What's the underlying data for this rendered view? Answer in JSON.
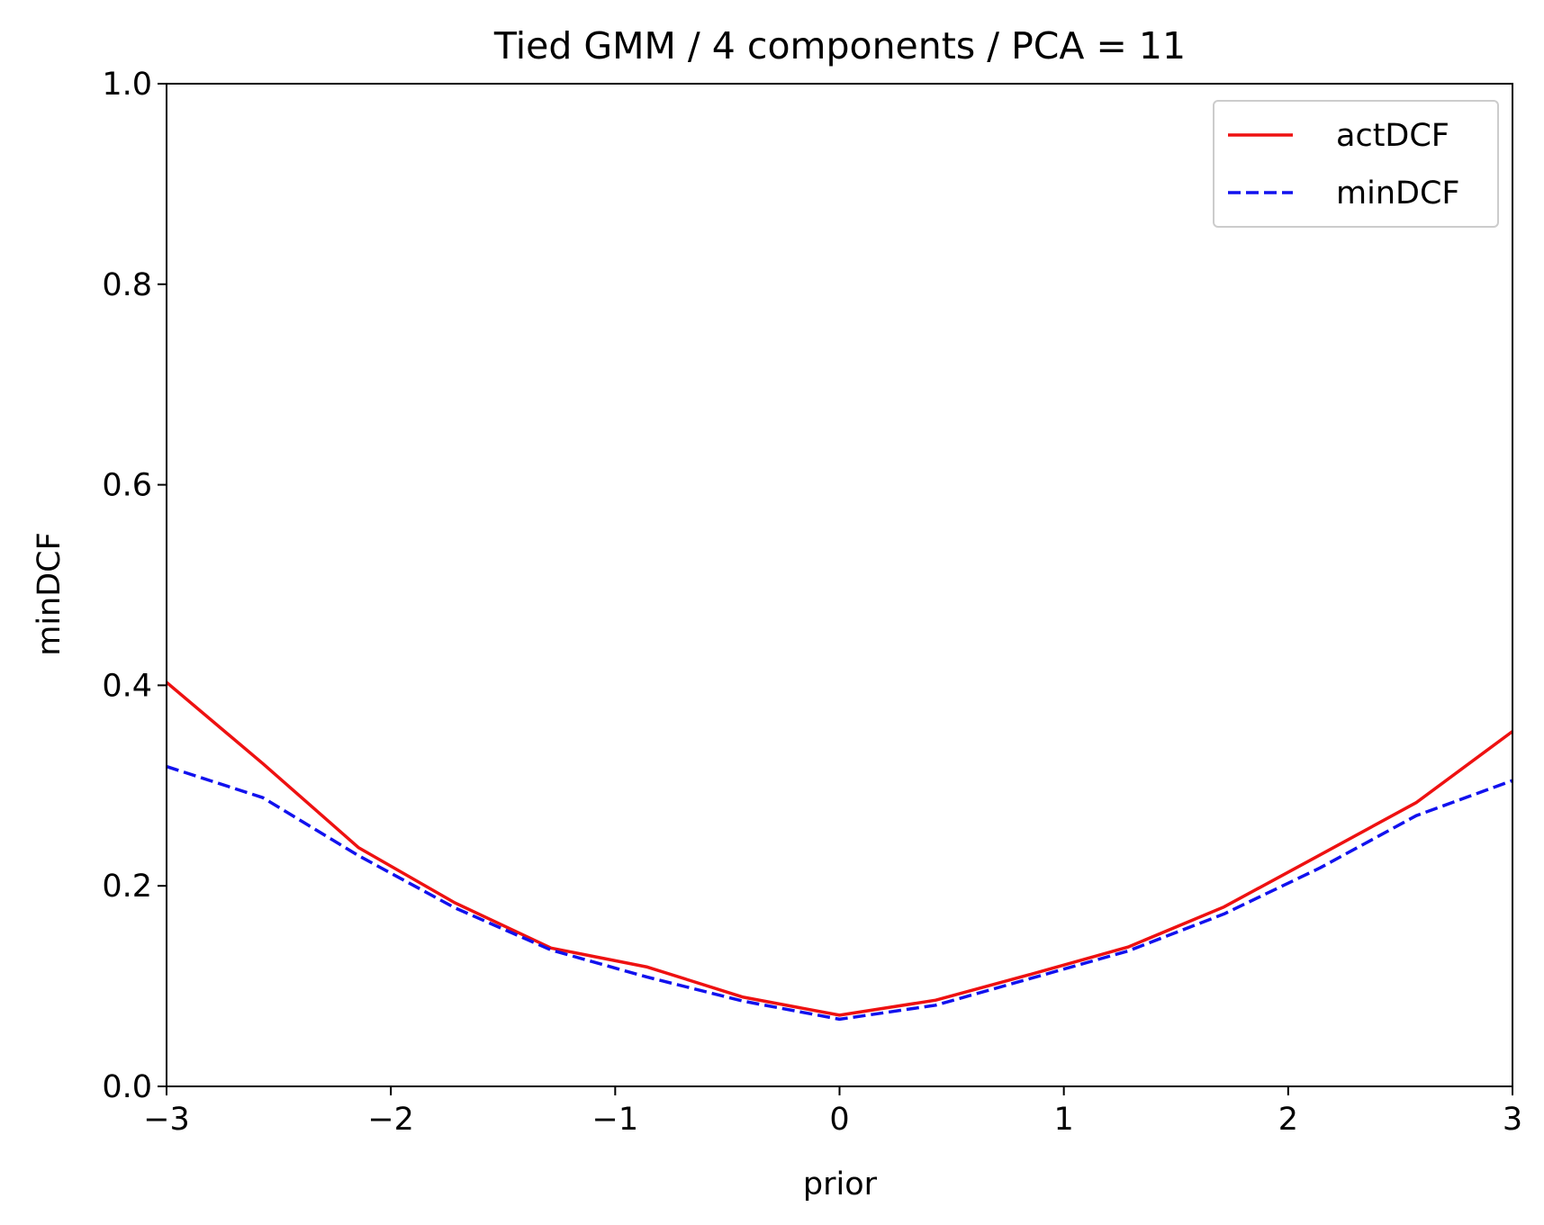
{
  "chart_data": {
    "type": "line",
    "title": "Tied GMM / 4 components / PCA = 11",
    "xlabel": "prior",
    "ylabel": "minDCF",
    "xlim": [
      -3,
      3
    ],
    "ylim": [
      0.0,
      1.0
    ],
    "xticks": [
      -3,
      -2,
      -1,
      0,
      1,
      2,
      3
    ],
    "xtick_labels": [
      "−3",
      "−2",
      "−1",
      "0",
      "1",
      "2",
      "3"
    ],
    "yticks": [
      0.0,
      0.2,
      0.4,
      0.6,
      0.8,
      1.0
    ],
    "ytick_labels": [
      "0.0",
      "0.2",
      "0.4",
      "0.6",
      "0.8",
      "1.0"
    ],
    "grid": false,
    "legend_position": "top-right",
    "x": [
      -3.0,
      -2.571,
      -2.143,
      -1.714,
      -1.286,
      -0.857,
      -0.429,
      0.0,
      0.429,
      0.857,
      1.286,
      1.714,
      2.143,
      2.571,
      3.0
    ],
    "series": [
      {
        "name": "actDCF",
        "color": "#ee1111",
        "style": "solid",
        "values": [
          0.403,
          0.322,
          0.238,
          0.183,
          0.138,
          0.119,
          0.089,
          0.071,
          0.086,
          0.112,
          0.139,
          0.179,
          0.231,
          0.283,
          0.354
        ]
      },
      {
        "name": "minDCF",
        "color": "#1111ee",
        "style": "dashed",
        "values": [
          0.319,
          0.288,
          0.23,
          0.178,
          0.136,
          0.109,
          0.085,
          0.067,
          0.081,
          0.108,
          0.135,
          0.172,
          0.218,
          0.27,
          0.305
        ]
      }
    ]
  }
}
